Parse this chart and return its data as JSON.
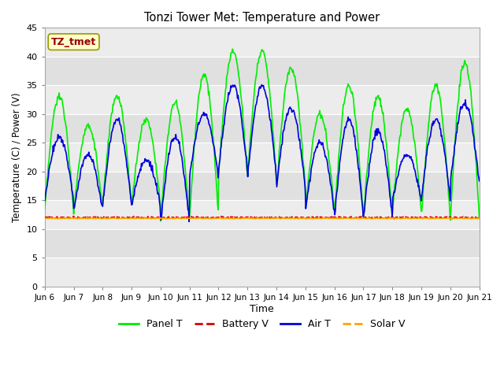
{
  "title": "Tonzi Tower Met: Temperature and Power",
  "xlabel": "Time",
  "ylabel": "Temperature (C) / Power (V)",
  "ylim": [
    0,
    45
  ],
  "yticks": [
    0,
    5,
    10,
    15,
    20,
    25,
    30,
    35,
    40,
    45
  ],
  "x_labels": [
    "Jun 6",
    "Jun 7",
    "Jun 8",
    "Jun 9",
    "Jun 10",
    "Jun 11",
    "Jun 12",
    "Jun 13",
    "Jun 14",
    "Jun 15",
    "Jun 16",
    "Jun 17",
    "Jun 18",
    "Jun 19",
    "Jun 20",
    "Jun 21"
  ],
  "annotation_text": "TZ_tmet",
  "annotation_bg": "#ffffcc",
  "annotation_fg": "#990000",
  "annotation_edge": "#999900",
  "fig_bg": "#ffffff",
  "plot_bg_dark": "#e0e0e0",
  "plot_bg_light": "#ececec",
  "grid_color": "#ffffff",
  "panel_T_color": "#00ee00",
  "battery_V_color": "#dd0000",
  "air_T_color": "#0000dd",
  "solar_V_color": "#ffa500",
  "line_width": 1.2,
  "n_days": 15,
  "pts_per_day": 48,
  "panel_base": 11.8,
  "air_base": 12.5,
  "battery_base": 12.0,
  "solar_base": 11.85,
  "panel_peaks": [
    33,
    28,
    33,
    29,
    32,
    37,
    41,
    41,
    38,
    30,
    35,
    33,
    31,
    35,
    39
  ],
  "panel_mins": [
    13,
    13,
    14,
    14,
    11,
    12,
    19,
    19,
    17,
    13,
    12,
    12,
    13,
    12,
    12
  ],
  "air_peaks": [
    26,
    23,
    29,
    22,
    26,
    30,
    35,
    35,
    31,
    25,
    29,
    27,
    23,
    29,
    32
  ],
  "air_mins": [
    15,
    13,
    14,
    14,
    11,
    19,
    20,
    19,
    17,
    13,
    12,
    12,
    15,
    15,
    18
  ]
}
